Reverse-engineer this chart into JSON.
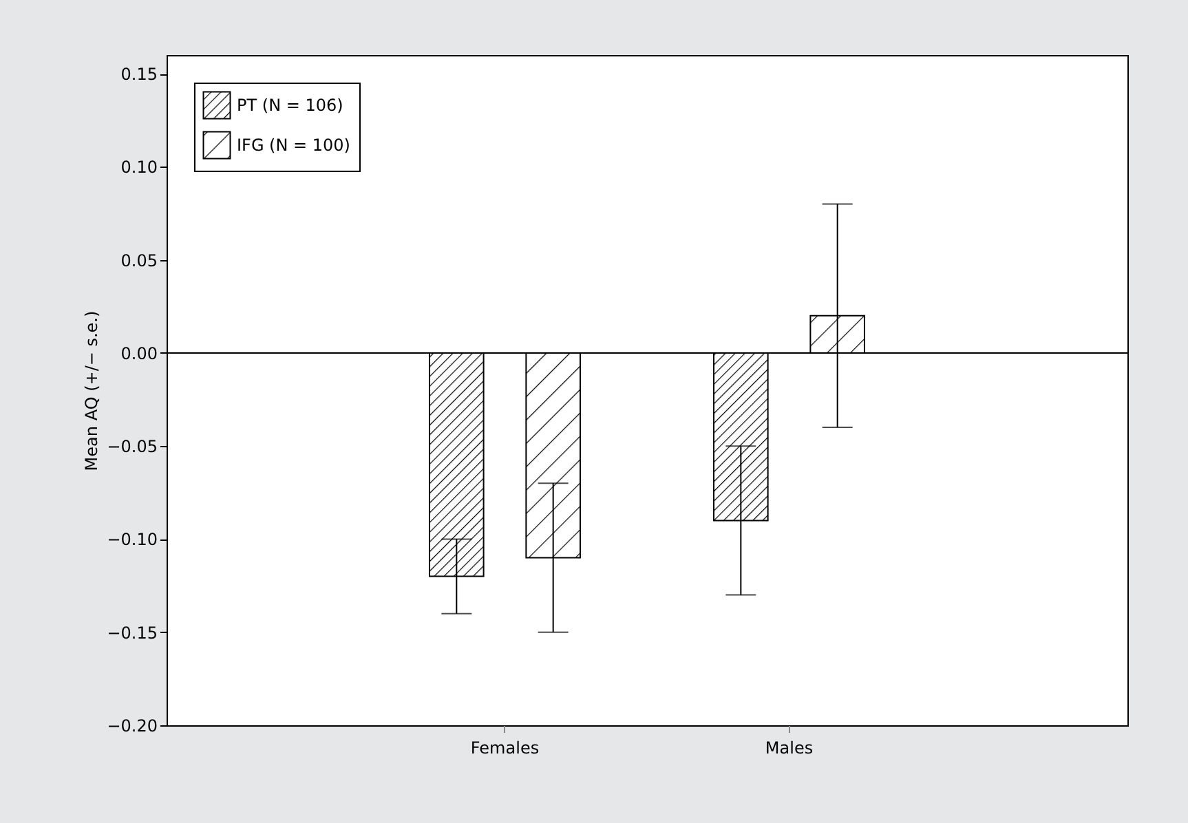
{
  "chart_data": {
    "type": "bar",
    "ylabel": "Mean AQ (+/− s.e.)",
    "categories": [
      "Females",
      "Males"
    ],
    "series": [
      {
        "name": "PT (N = 106)",
        "color": "#000000",
        "values": [
          -0.12,
          -0.09
        ],
        "errors": [
          0.02,
          0.04
        ]
      },
      {
        "name": "IFG (N = 100)",
        "color": "#000000",
        "values": [
          -0.11,
          0.02
        ],
        "errors": [
          0.04,
          0.06
        ]
      }
    ],
    "ylim": [
      -0.2,
      0.16
    ],
    "yticks": [
      {
        "value": -0.2,
        "label": "−0.20"
      },
      {
        "value": -0.15,
        "label": "−0.15"
      },
      {
        "value": -0.1,
        "label": "−0.10"
      },
      {
        "value": -0.05,
        "label": "−0.05"
      },
      {
        "value": 0,
        "label": "0.00"
      },
      {
        "value": 0.05,
        "label": "0.05"
      },
      {
        "value": 0.1,
        "label": "0.10"
      },
      {
        "value": 0.15,
        "label": "0.15"
      }
    ],
    "ref_lines": [
      {
        "axis": "y",
        "value": 0
      }
    ],
    "grid": false,
    "legend": "top left"
  }
}
